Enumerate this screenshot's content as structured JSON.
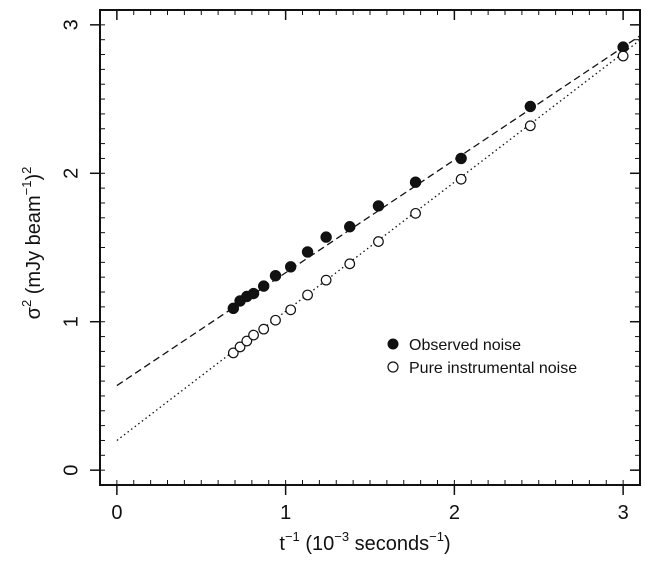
{
  "chart_data": {
    "type": "scatter",
    "xlabel": {
      "base": "t",
      "sup1": "−1",
      "mid": " (10",
      "sup2": "−3",
      "mid2": " seconds",
      "sup3": "−1",
      "end": ")"
    },
    "ylabel": {
      "base": "σ",
      "sup1": "2",
      "mid": " (mJy beam",
      "sup2": "−1",
      "mid2": ")",
      "sup3": "2"
    },
    "xlim": [
      -0.1,
      3.1
    ],
    "ylim": [
      -0.1,
      3.1
    ],
    "x_ticks": [
      0,
      1,
      2,
      3
    ],
    "y_ticks": [
      0,
      1,
      2,
      3
    ],
    "x_tick_labels": [
      "0",
      "1",
      "2",
      "3"
    ],
    "y_tick_labels": [
      "0",
      "1",
      "2",
      "3"
    ],
    "x_minor_step": 0.1,
    "y_minor_step": 0.1,
    "legend_position": "right-middle",
    "series": [
      {
        "name": "Observed noise",
        "marker": "filled-circle",
        "x": [
          0.69,
          0.73,
          0.77,
          0.81,
          0.87,
          0.94,
          1.03,
          1.13,
          1.24,
          1.38,
          1.55,
          1.77,
          2.04,
          2.45,
          3.0
        ],
        "y": [
          1.09,
          1.14,
          1.17,
          1.19,
          1.24,
          1.31,
          1.37,
          1.47,
          1.57,
          1.64,
          1.78,
          1.94,
          2.1,
          2.45,
          2.85
        ]
      },
      {
        "name": "Pure instrumental noise",
        "marker": "open-circle",
        "x": [
          0.69,
          0.73,
          0.77,
          0.81,
          0.87,
          0.94,
          1.03,
          1.13,
          1.24,
          1.38,
          1.55,
          1.77,
          2.04,
          2.45,
          3.0
        ],
        "y": [
          0.79,
          0.83,
          0.87,
          0.91,
          0.95,
          1.01,
          1.08,
          1.18,
          1.28,
          1.39,
          1.54,
          1.73,
          1.96,
          2.32,
          2.79
        ]
      }
    ],
    "fits": [
      {
        "style": "dashed",
        "intercept": 0.57,
        "slope": 0.76,
        "x_range": [
          0,
          3.1
        ]
      },
      {
        "style": "dotted",
        "intercept": 0.2,
        "slope": 0.87,
        "x_range": [
          0,
          3.1
        ]
      }
    ]
  }
}
